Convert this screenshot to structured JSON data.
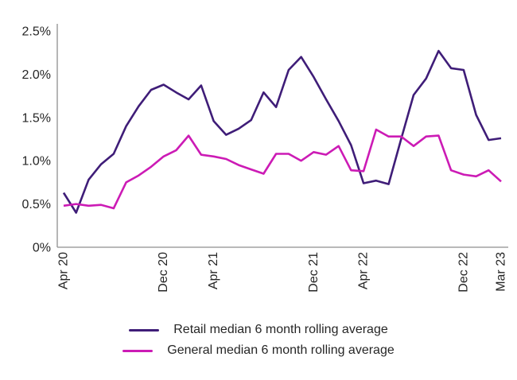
{
  "chart_data": {
    "type": "line",
    "title": "",
    "xlabel": "",
    "ylabel": "",
    "y_unit": "%",
    "ylim": [
      0,
      2.5
    ],
    "grid": false,
    "legend_position": "bottom",
    "axis_color": "#8f8f8f",
    "label_color": "#262626",
    "x": [
      "Apr 2020",
      "May 2020",
      "Jun 2020",
      "Jul 2020",
      "Aug 2020",
      "Sep 2020",
      "Oct 2020",
      "Nov 2020",
      "Dec 2020",
      "Jan 2021",
      "Feb 2021",
      "Mar 2021",
      "Apr 2021",
      "May 2021",
      "Jun 2021",
      "Jul 2021",
      "Aug 2021",
      "Sep 2021",
      "Oct 2021",
      "Nov 2021",
      "Dec 2021",
      "Jan 2022",
      "Feb 2022",
      "Mar 2022",
      "Apr 2022",
      "May 2022",
      "Jun 2022",
      "Jul 2022",
      "Aug 2022",
      "Sep 2022",
      "Oct 2022",
      "Nov 2022",
      "Dec 2022",
      "Jan 2023",
      "Feb 2023",
      "Mar 2023"
    ],
    "x_ticks": [
      {
        "index": 0,
        "label": "Apr 20"
      },
      {
        "index": 8,
        "label": "Dec 20"
      },
      {
        "index": 12,
        "label": "Apr 21"
      },
      {
        "index": 20,
        "label": "Dec 21"
      },
      {
        "index": 24,
        "label": "Apr 22"
      },
      {
        "index": 32,
        "label": "Dec 22"
      },
      {
        "index": 35,
        "label": "Mar 23"
      }
    ],
    "y_ticks": [
      {
        "value": 0,
        "label": "0%"
      },
      {
        "value": 0.5,
        "label": "0.5%"
      },
      {
        "value": 1.0,
        "label": "1.0%"
      },
      {
        "value": 1.5,
        "label": "1.5%"
      },
      {
        "value": 2.0,
        "label": "2.0%"
      },
      {
        "value": 2.5,
        "label": "2.5%"
      }
    ],
    "series": [
      {
        "name": "Retail median 6 month rolling average",
        "color": "#3f1d78",
        "values": [
          0.63,
          0.4,
          0.78,
          0.96,
          1.08,
          1.4,
          1.63,
          1.82,
          1.88,
          1.79,
          1.71,
          1.87,
          1.46,
          1.3,
          1.37,
          1.47,
          1.79,
          1.62,
          2.05,
          2.2,
          1.97,
          1.71,
          1.46,
          1.18,
          0.74,
          0.77,
          0.73,
          1.25,
          1.76,
          1.95,
          2.27,
          2.07,
          2.05,
          1.53,
          1.24,
          1.26
        ]
      },
      {
        "name": "General median 6 month rolling average",
        "color": "#cc1bb5",
        "values": [
          0.48,
          0.5,
          0.48,
          0.49,
          0.45,
          0.75,
          0.83,
          0.93,
          1.05,
          1.12,
          1.29,
          1.07,
          1.05,
          1.02,
          0.95,
          0.9,
          0.85,
          1.08,
          1.08,
          1.0,
          1.1,
          1.07,
          1.17,
          0.89,
          0.88,
          1.36,
          1.28,
          1.28,
          1.17,
          1.28,
          1.29,
          0.89,
          0.84,
          0.82,
          0.89,
          0.76
        ]
      }
    ]
  }
}
